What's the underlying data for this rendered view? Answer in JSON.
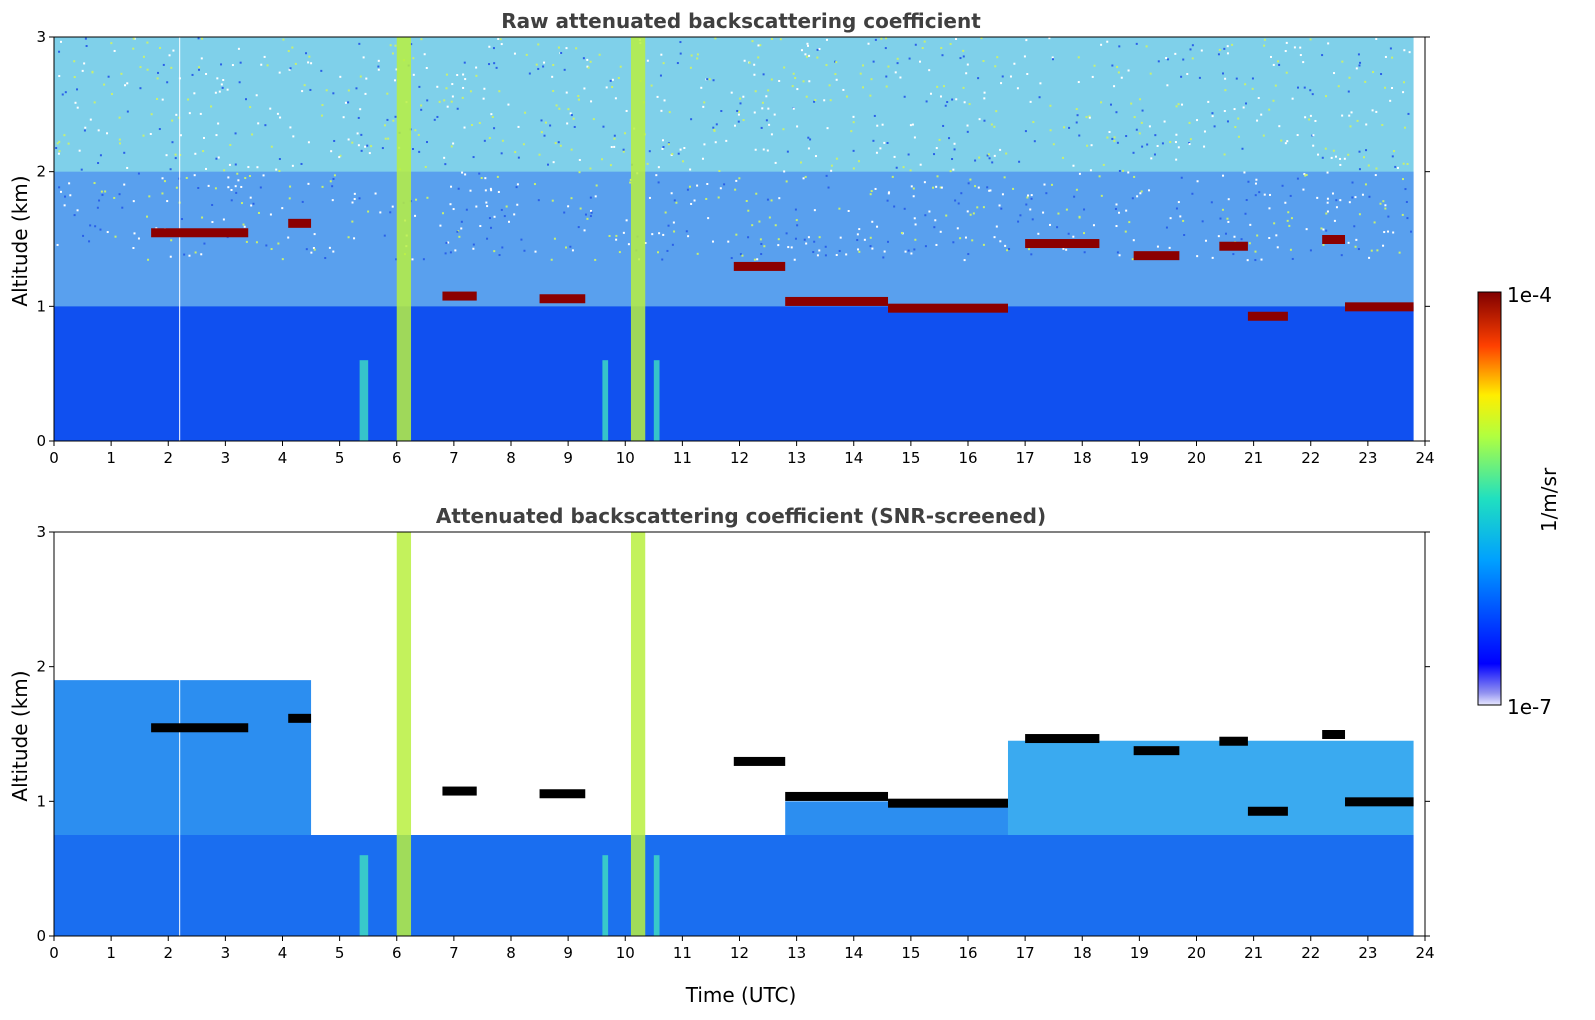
{
  "chart_data": [
    {
      "type": "heatmap",
      "title": "Raw attenuated backscattering coefficient",
      "xlabel": "",
      "ylabel": "Altitude (km)",
      "xlim": [
        0,
        24
      ],
      "ylim": [
        0,
        3
      ],
      "xticks": [
        0,
        1,
        2,
        3,
        4,
        5,
        6,
        7,
        8,
        9,
        10,
        11,
        12,
        13,
        14,
        15,
        16,
        17,
        18,
        19,
        20,
        21,
        22,
        23,
        24
      ],
      "yticks": [
        0,
        1,
        2,
        3
      ],
      "screened": false,
      "data_end_x": 23.8,
      "grid": false
    },
    {
      "type": "heatmap",
      "title": "Attenuated backscattering coefficient (SNR-screened)",
      "xlabel": "Time (UTC)",
      "ylabel": "Altitude (km)",
      "xlim": [
        0,
        24
      ],
      "ylim": [
        0,
        3
      ],
      "xticks": [
        0,
        1,
        2,
        3,
        4,
        5,
        6,
        7,
        8,
        9,
        10,
        11,
        12,
        13,
        14,
        15,
        16,
        17,
        18,
        19,
        20,
        21,
        22,
        23,
        24
      ],
      "yticks": [
        0,
        1,
        2,
        3
      ],
      "screened": true,
      "data_end_x": 23.8,
      "grid": false
    }
  ],
  "cloud_layers": [
    {
      "x": [
        1.7,
        3.4
      ],
      "y": 1.55
    },
    {
      "x": [
        4.1,
        4.5
      ],
      "y": 1.62
    },
    {
      "x": [
        6.8,
        7.4
      ],
      "y": 1.08
    },
    {
      "x": [
        8.5,
        9.3
      ],
      "y": 1.06
    },
    {
      "x": [
        11.9,
        12.8
      ],
      "y": 1.3
    },
    {
      "x": [
        12.8,
        14.6
      ],
      "y": 1.04
    },
    {
      "x": [
        14.6,
        16.7
      ],
      "y": 0.99
    },
    {
      "x": [
        17.0,
        18.3
      ],
      "y": 1.47
    },
    {
      "x": [
        18.9,
        19.7
      ],
      "y": 1.38
    },
    {
      "x": [
        20.4,
        20.9
      ],
      "y": 1.45
    },
    {
      "x": [
        20.9,
        21.6
      ],
      "y": 0.93
    },
    {
      "x": [
        22.2,
        22.6
      ],
      "y": 1.5
    },
    {
      "x": [
        22.6,
        23.8
      ],
      "y": 1.0
    }
  ],
  "colorbar": {
    "label": "1/m/sr",
    "max_label": "1e-4",
    "min_label": "1e-7",
    "colormap": "jet",
    "scale": "log"
  },
  "colors": {
    "background": "#ffffff",
    "title": "#404040",
    "cloud_raw": "#8b0000",
    "cloud_screened": "#000000"
  }
}
